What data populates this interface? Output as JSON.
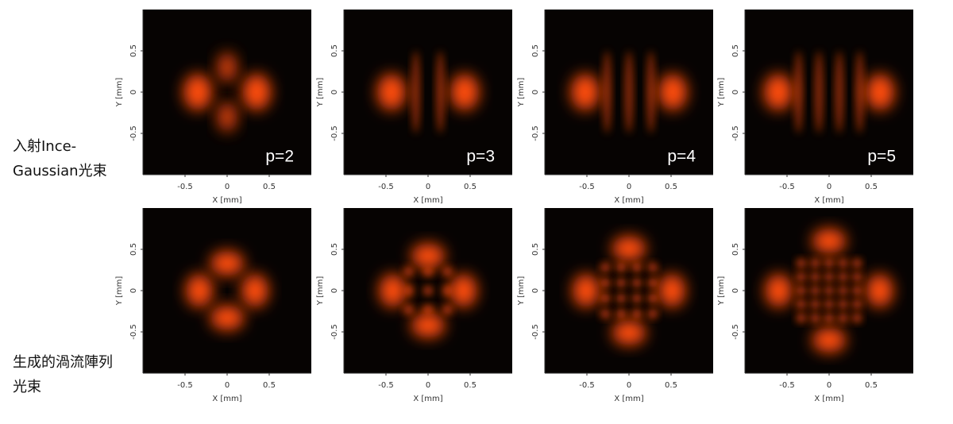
{
  "rows": [
    {
      "label_lines": [
        "入射Ince-",
        "Gaussian光束"
      ],
      "panel_labels": [
        "p=2",
        "p=3",
        "p=4",
        "p=5"
      ]
    },
    {
      "label_lines": [
        "生成的渦流陣列",
        "光束"
      ]
    }
  ],
  "axes": {
    "xlabel": "X [mm]",
    "ylabel": "Y [mm]",
    "xlim": [
      -1,
      1
    ],
    "ylim": [
      -1,
      1
    ],
    "xticks": [
      -0.5,
      0,
      0.5
    ],
    "yticks": [
      -0.5,
      0,
      0.5
    ]
  }
}
